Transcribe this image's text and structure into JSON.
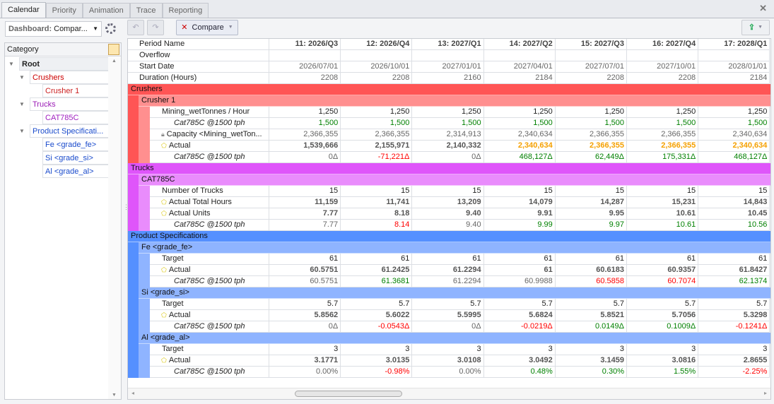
{
  "tabs": [
    "Calendar",
    "Priority",
    "Animation",
    "Trace",
    "Reporting"
  ],
  "active_tab": "Calendar",
  "dashboard": {
    "label": "Dashboard:",
    "value": "Compar..."
  },
  "toolbar": {
    "compare_label": "Compare"
  },
  "category": {
    "header": "Category",
    "items": [
      {
        "label": "Root",
        "level": 0,
        "bold": true,
        "color": "#222222",
        "expanded": true
      },
      {
        "label": "Crushers",
        "level": 1,
        "color": "#cc0000",
        "expanded": true
      },
      {
        "label": "Crusher 1",
        "level": 2,
        "color": "#cc2222"
      },
      {
        "label": "Trucks",
        "level": 1,
        "color": "#9a1ab5",
        "expanded": true
      },
      {
        "label": "CAT785C",
        "level": 2,
        "color": "#a020c0"
      },
      {
        "label": "Product Specificati...",
        "level": 1,
        "color": "#1a4bcc",
        "expanded": true
      },
      {
        "label": "Fe <grade_fe>",
        "level": 2,
        "color": "#1a4bcc"
      },
      {
        "label": "Si <grade_si>",
        "level": 2,
        "color": "#1a4bcc"
      },
      {
        "label": "Al <grade_al>",
        "level": 2,
        "color": "#1a4bcc"
      }
    ]
  },
  "colors": {
    "crushers": "#ff5555",
    "crusher1": "#ff8f8f",
    "trucks": "#df55fa",
    "cat785c": "#e98cfc",
    "product": "#5590ff",
    "grade": "#8fb4ff"
  },
  "grid": {
    "periods": [
      "11: 2026/Q3",
      "12: 2026/Q4",
      "13: 2027/Q1",
      "14: 2027/Q2",
      "15: 2027/Q3",
      "16: 2027/Q4",
      "17: 2028/Q1"
    ],
    "rows": [
      {
        "type": "head",
        "label": "Period Name"
      },
      {
        "type": "data",
        "label": "Overflow",
        "depth": 0,
        "values": [
          "",
          "",
          "",
          "",
          "",
          "",
          ""
        ],
        "tone": "n"
      },
      {
        "type": "data",
        "label": "Start Date",
        "depth": 0,
        "values": [
          "2026/07/01",
          "2026/10/01",
          "2027/01/01",
          "2027/04/01",
          "2027/07/01",
          "2027/10/01",
          "2028/01/01"
        ],
        "tone": "m"
      },
      {
        "type": "data",
        "label": "Duration (Hours)",
        "depth": 0,
        "values": [
          "2208",
          "2208",
          "2160",
          "2184",
          "2208",
          "2208",
          "2184"
        ],
        "tone": "m"
      },
      {
        "type": "band",
        "label": "Crushers",
        "depth": 0,
        "color": "crushers"
      },
      {
        "type": "band",
        "label": "Crusher 1",
        "depth": 1,
        "color": "crusher1",
        "parents": [
          "crushers"
        ]
      },
      {
        "type": "data",
        "label": "Mining_wetTonnes / Hour",
        "depth": 2,
        "parents": [
          "crushers",
          "crusher1"
        ],
        "values": [
          "1,250",
          "1,250",
          "1,250",
          "1,250",
          "1,250",
          "1,250",
          "1,250"
        ],
        "tone": "n"
      },
      {
        "type": "data",
        "label": "Cat785C @1500 tph",
        "italic": true,
        "depth": 2,
        "parents": [
          "crushers",
          "crusher1"
        ],
        "values": [
          "1,500",
          "1,500",
          "1,500",
          "1,500",
          "1,500",
          "1,500",
          "1,500"
        ],
        "tone": "g"
      },
      {
        "type": "data",
        "label": "Capacity <Mining_wetTon...",
        "icon": "lock",
        "depth": 2,
        "parents": [
          "crushers",
          "crusher1"
        ],
        "values": [
          "2,366,355",
          "2,366,355",
          "2,314,913",
          "2,340,634",
          "2,366,355",
          "2,366,355",
          "2,340,634"
        ],
        "tone": "m"
      },
      {
        "type": "data",
        "label": "Actual",
        "icon": "badge",
        "depth": 2,
        "parents": [
          "crushers",
          "crusher1"
        ],
        "values": [
          "1,539,666",
          "2,155,971",
          "2,140,332",
          "2,340,634",
          "2,366,355",
          "2,366,355",
          "2,340,634"
        ],
        "tones": [
          "b",
          "b",
          "b",
          "o",
          "o",
          "o",
          "o"
        ]
      },
      {
        "type": "data",
        "label": "Cat785C @1500 tph",
        "italic": true,
        "depth": 2,
        "parents": [
          "crushers",
          "crusher1"
        ],
        "values": [
          "0Δ",
          "-71,221Δ",
          "0Δ",
          "468,127Δ",
          "62,449Δ",
          "175,331Δ",
          "468,127Δ"
        ],
        "tones": [
          "m",
          "r",
          "m",
          "g",
          "g",
          "g",
          "g"
        ]
      },
      {
        "type": "band",
        "label": "Trucks",
        "depth": 0,
        "color": "trucks"
      },
      {
        "type": "band",
        "label": "CAT785C",
        "depth": 1,
        "color": "cat785c",
        "parents": [
          "trucks"
        ]
      },
      {
        "type": "data",
        "label": "Number of Trucks",
        "depth": 2,
        "parents": [
          "trucks",
          "cat785c"
        ],
        "values": [
          "15",
          "15",
          "15",
          "15",
          "15",
          "15",
          "15"
        ],
        "tone": "n"
      },
      {
        "type": "data",
        "label": "Actual Total Hours",
        "icon": "badge",
        "depth": 2,
        "parents": [
          "trucks",
          "cat785c"
        ],
        "values": [
          "11,159",
          "11,741",
          "13,209",
          "14,079",
          "14,287",
          "15,231",
          "14,843"
        ],
        "tone": "b"
      },
      {
        "type": "data",
        "label": "Actual Units",
        "icon": "badge",
        "depth": 2,
        "parents": [
          "trucks",
          "cat785c"
        ],
        "values": [
          "7.77",
          "8.18",
          "9.40",
          "9.91",
          "9.95",
          "10.61",
          "10.45"
        ],
        "tone": "b"
      },
      {
        "type": "data",
        "label": "Cat785C @1500 tph",
        "italic": true,
        "depth": 2,
        "parents": [
          "trucks",
          "cat785c"
        ],
        "values": [
          "7.77",
          "8.14",
          "9.40",
          "9.99",
          "9.97",
          "10.61",
          "10.56"
        ],
        "tones": [
          "m",
          "r",
          "m",
          "g",
          "g",
          "g",
          "g"
        ]
      },
      {
        "type": "band",
        "label": "Product Specifications",
        "depth": 0,
        "color": "product"
      },
      {
        "type": "band",
        "label": "Fe <grade_fe>",
        "depth": 1,
        "color": "grade",
        "parents": [
          "product"
        ]
      },
      {
        "type": "data",
        "label": "Target",
        "depth": 2,
        "parents": [
          "product",
          "grade"
        ],
        "values": [
          "61",
          "61",
          "61",
          "61",
          "61",
          "61",
          "61"
        ],
        "tone": "n"
      },
      {
        "type": "data",
        "label": "Actual",
        "icon": "badge",
        "depth": 2,
        "parents": [
          "product",
          "grade"
        ],
        "values": [
          "60.5751",
          "61.2425",
          "61.2294",
          "61",
          "60.6183",
          "60.9357",
          "61.8427"
        ],
        "tone": "b"
      },
      {
        "type": "data",
        "label": "Cat785C @1500 tph",
        "italic": true,
        "depth": 2,
        "parents": [
          "product",
          "grade"
        ],
        "values": [
          "60.5751",
          "61.3681",
          "61.2294",
          "60.9988",
          "60.5858",
          "60.7074",
          "62.1374"
        ],
        "tones": [
          "m",
          "g",
          "m",
          "m",
          "r",
          "r",
          "g"
        ]
      },
      {
        "type": "band",
        "label": "Si <grade_si>",
        "depth": 1,
        "color": "grade",
        "parents": [
          "product"
        ]
      },
      {
        "type": "data",
        "label": "Target",
        "depth": 2,
        "parents": [
          "product",
          "grade"
        ],
        "values": [
          "5.7",
          "5.7",
          "5.7",
          "5.7",
          "5.7",
          "5.7",
          "5.7"
        ],
        "tone": "n"
      },
      {
        "type": "data",
        "label": "Actual",
        "icon": "badge",
        "depth": 2,
        "parents": [
          "product",
          "grade"
        ],
        "values": [
          "5.8562",
          "5.6022",
          "5.5995",
          "5.6824",
          "5.8521",
          "5.7056",
          "5.3298"
        ],
        "tone": "b"
      },
      {
        "type": "data",
        "label": "Cat785C @1500 tph",
        "italic": true,
        "depth": 2,
        "parents": [
          "product",
          "grade"
        ],
        "values": [
          "0Δ",
          "-0.0543Δ",
          "0Δ",
          "-0.0219Δ",
          "0.0149Δ",
          "0.1009Δ",
          "-0.1241Δ"
        ],
        "tones": [
          "m",
          "r",
          "m",
          "r",
          "g",
          "g",
          "r"
        ]
      },
      {
        "type": "band",
        "label": "Al <grade_al>",
        "depth": 1,
        "color": "grade",
        "parents": [
          "product"
        ]
      },
      {
        "type": "data",
        "label": "Target",
        "depth": 2,
        "parents": [
          "product",
          "grade"
        ],
        "values": [
          "3",
          "3",
          "3",
          "3",
          "3",
          "3",
          "3"
        ],
        "tone": "n"
      },
      {
        "type": "data",
        "label": "Actual",
        "icon": "badge",
        "depth": 2,
        "parents": [
          "product",
          "grade"
        ],
        "values": [
          "3.1771",
          "3.0135",
          "3.0108",
          "3.0492",
          "3.1459",
          "3.0816",
          "2.8655"
        ],
        "tone": "b"
      },
      {
        "type": "data",
        "label": "Cat785C @1500 tph",
        "italic": true,
        "depth": 2,
        "parents": [
          "product",
          "grade"
        ],
        "values": [
          "0.00%",
          "-0.98%",
          "0.00%",
          "0.48%",
          "0.30%",
          "1.55%",
          "-2.25%"
        ],
        "tones": [
          "m",
          "r",
          "m",
          "g",
          "g",
          "g",
          "r"
        ]
      }
    ]
  }
}
